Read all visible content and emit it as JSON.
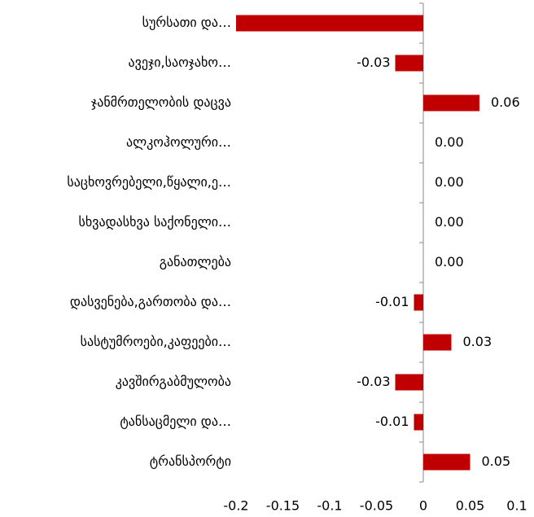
{
  "chart_data": {
    "type": "bar",
    "orientation": "horizontal",
    "categories": [
      "სურსათი და…",
      "ავეჯი,საოჯახო…",
      "ჯანმრთელობის დაცვა",
      "ალკოჰოლური…",
      "საცხოვრებელი,წყალი,ე…",
      "სხვადასხვა საქონელი…",
      "განათლება",
      "დასვენება,გართობა და…",
      "სასტუმროები,კაფეები…",
      "კავშირგაბმულობა",
      "ტანსაცმელი და…",
      "ტრანსპორტი"
    ],
    "values": [
      -0.2,
      -0.03,
      0.06,
      0,
      0,
      0,
      0,
      -0.01,
      0.03,
      -0.03,
      -0.01,
      0.05
    ],
    "value_labels": [
      null,
      "-0.03",
      "0.06",
      "0.00",
      "0.00",
      "0.00",
      "0.00",
      "-0.01",
      "0.03",
      "-0.03",
      "-0.01",
      "0.05"
    ],
    "color": "#c00000",
    "xlim": [
      -0.2,
      0.1
    ],
    "xticks": [
      -0.2,
      -0.15,
      -0.1,
      -0.05,
      0,
      0.05,
      0.1
    ],
    "grid": false
  }
}
